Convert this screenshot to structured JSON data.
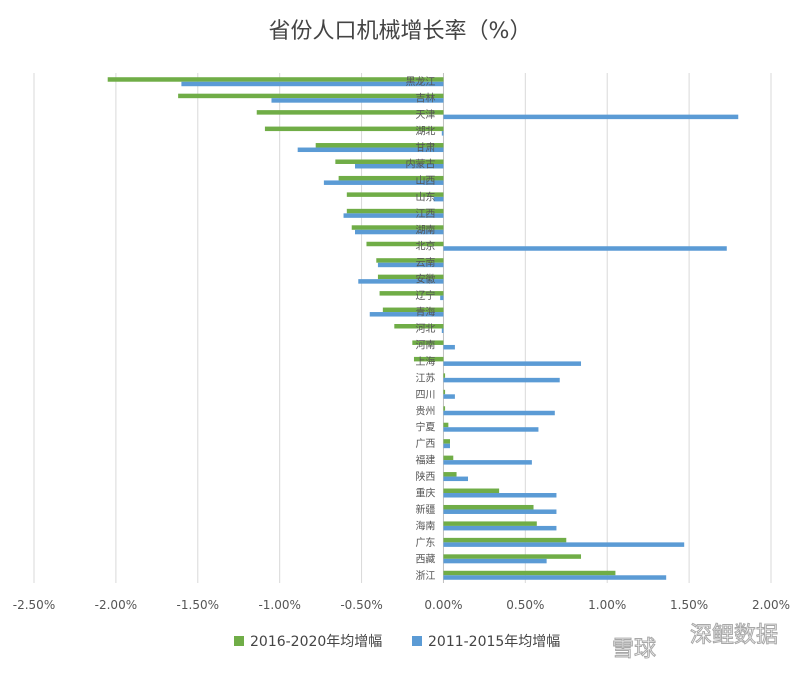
{
  "chart_data": {
    "type": "bar",
    "orientation": "horizontal",
    "title": "省份人口机械增长率（%）",
    "xlabel": "",
    "ylabel": "",
    "xlim": [
      -0.025,
      0.02
    ],
    "x_ticks": [
      -0.025,
      -0.02,
      -0.015,
      -0.01,
      -0.005,
      0.0,
      0.005,
      0.01,
      0.015,
      0.02
    ],
    "x_tick_labels": [
      "-2.50%",
      "-2.00%",
      "-1.50%",
      "-1.00%",
      "-0.50%",
      "0.00%",
      "0.50%",
      "1.00%",
      "1.50%",
      "2.00%"
    ],
    "grid": "vertical",
    "legend_position": "bottom",
    "categories": [
      "黑龙江",
      "吉林",
      "天津",
      "湖北",
      "甘肃",
      "内蒙古",
      "山西",
      "山东",
      "江西",
      "湖南",
      "北京",
      "云南",
      "安徽",
      "辽宁",
      "青海",
      "河北",
      "河南",
      "上海",
      "江苏",
      "四川",
      "贵州",
      "宁夏",
      "广西",
      "福建",
      "陕西",
      "重庆",
      "新疆",
      "海南",
      "广东",
      "西藏",
      "浙江"
    ],
    "series": [
      {
        "name": "2016-2020年均增幅",
        "color": "#70AD47",
        "values": [
          -0.0205,
          -0.0162,
          -0.0114,
          -0.0109,
          -0.0078,
          -0.0066,
          -0.0064,
          -0.0059,
          -0.0059,
          -0.0056,
          -0.0047,
          -0.0041,
          -0.004,
          -0.0039,
          -0.0037,
          -0.003,
          -0.0019,
          -0.0018,
          0.0001,
          0.0001,
          0.0001,
          0.0003,
          0.0004,
          0.0006,
          0.0008,
          0.0034,
          0.0055,
          0.0057,
          0.0075,
          0.0084,
          0.0105
        ]
      },
      {
        "name": "2011-2015年均增幅",
        "color": "#5B9BD5",
        "values": [
          -0.016,
          -0.0105,
          0.018,
          -0.0001,
          -0.0089,
          -0.0054,
          -0.0073,
          -0.0006,
          -0.0061,
          -0.0054,
          0.0173,
          -0.004,
          -0.0052,
          -0.0002,
          -0.0045,
          -0.0001,
          0.0007,
          0.0084,
          0.0071,
          0.0007,
          0.0068,
          0.0058,
          0.0004,
          0.0054,
          0.0015,
          0.0069,
          0.0069,
          0.0069,
          0.0147,
          0.0063,
          0.0136
        ]
      }
    ]
  },
  "watermark": {
    "platform": "雪球",
    "author": "深鲤数据"
  },
  "colors": {
    "grid": "#d9d9d9",
    "axis": "#bfbfbf"
  }
}
